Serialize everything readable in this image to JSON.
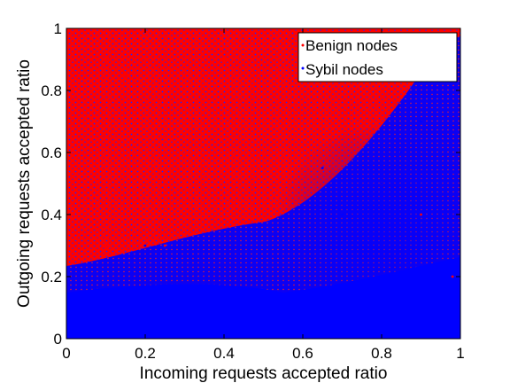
{
  "chart_data": {
    "type": "scatter",
    "xlabel": "Incoming requests accepted ratio",
    "ylabel": "Outgoing requests accepted ratio",
    "xlim": [
      0,
      1
    ],
    "ylim": [
      0,
      1
    ],
    "xticks": [
      0,
      0.2,
      0.4,
      0.6,
      0.8,
      1
    ],
    "xtick_labels": [
      "0",
      "0.2",
      "0.4",
      "0.6",
      "0.8",
      "1"
    ],
    "yticks": [
      0,
      0.2,
      0.4,
      0.6,
      0.8,
      1
    ],
    "ytick_labels": [
      "0",
      "0.2",
      "0.4",
      "0.6",
      "0.8",
      "1"
    ],
    "grid": false,
    "legend_position": "top-right",
    "series": [
      {
        "name": "Benign nodes",
        "color": "#ff0000",
        "marker": "dot",
        "distribution": "dense over most of the unit square, heaviest at low incoming ratio and high outgoing ratio",
        "points": [
          [
            0.05,
            0.95
          ],
          [
            0.1,
            0.9
          ],
          [
            0.15,
            0.85
          ],
          [
            0.2,
            0.9
          ],
          [
            0.25,
            0.8
          ],
          [
            0.3,
            0.75
          ],
          [
            0.1,
            0.67
          ],
          [
            0.2,
            0.6
          ],
          [
            0.3,
            0.5
          ],
          [
            0.4,
            0.9
          ],
          [
            0.45,
            0.7
          ],
          [
            0.35,
            0.4
          ],
          [
            0.05,
            0.5
          ],
          [
            0.1,
            0.3
          ],
          [
            0.25,
            0.3
          ],
          [
            0.5,
            0.6
          ],
          [
            0.6,
            0.8
          ],
          [
            0.7,
            0.7
          ],
          [
            0.8,
            0.5
          ],
          [
            0.9,
            0.4
          ],
          [
            0.98,
            0.2
          ]
        ]
      },
      {
        "name": "Sybil nodes",
        "color": "#0000ff",
        "marker": "dot",
        "distribution": "dense band at low outgoing ratio across all incoming ratios, widening toward high incoming ratio",
        "points": [
          [
            0.05,
            0.05
          ],
          [
            0.1,
            0.1
          ],
          [
            0.2,
            0.08
          ],
          [
            0.3,
            0.12
          ],
          [
            0.4,
            0.06
          ],
          [
            0.5,
            0.04
          ],
          [
            0.6,
            0.1
          ],
          [
            0.7,
            0.15
          ],
          [
            0.8,
            0.12
          ],
          [
            0.9,
            0.08
          ],
          [
            0.95,
            0.05
          ],
          [
            0.6,
            0.3
          ],
          [
            0.7,
            0.4
          ],
          [
            0.8,
            0.5
          ],
          [
            0.85,
            0.6
          ],
          [
            0.9,
            0.7
          ],
          [
            0.95,
            0.85
          ],
          [
            0.5,
            0.2
          ],
          [
            0.2,
            0.3
          ],
          [
            0.4,
            0.35
          ],
          [
            0.65,
            0.55
          ]
        ]
      }
    ]
  }
}
